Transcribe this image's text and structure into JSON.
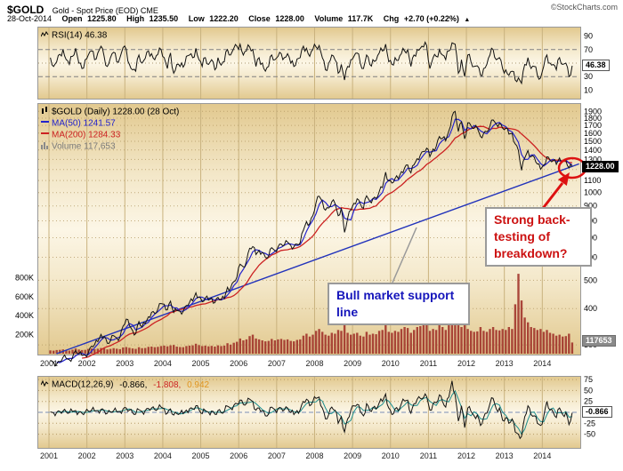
{
  "header": {
    "symbol": "$GOLD",
    "description": "Gold - Spot Price (EOD) CME",
    "watermark": "©StockCharts.com",
    "date": "28-Oct-2014",
    "quote": [
      {
        "label": "Open",
        "value": "1225.80"
      },
      {
        "label": "High",
        "value": "1235.50"
      },
      {
        "label": "Low",
        "value": "1222.20"
      },
      {
        "label": "Close",
        "value": "1228.00"
      },
      {
        "label": "Volume",
        "value": "117.7K"
      },
      {
        "label": "Chg",
        "value": "+2.70 (+0.22%)"
      }
    ],
    "chg_arrow": "▲"
  },
  "rsi_panel": {
    "label": "RSI(14) 46.38",
    "value_box": "46.38"
  },
  "main_panel": {
    "title": "$GOLD (Daily) 1228.00 (28 Oct)",
    "ma50_label": "MA(50) 1241.57",
    "ma200_label": "MA(200) 1284.33",
    "volume_label": "Volume 117,653",
    "price_box": "1228.00",
    "volume_box": "117653",
    "annotation_support": "Bull market support line",
    "annotation_backtest": "Strong back-testing of breakdown?"
  },
  "macd_panel": {
    "label": "MACD(12,26,9)",
    "macd_value": "-0.866,",
    "signal_value": "-1.808,",
    "hist_value": "0.942",
    "value_box": "-0.866"
  },
  "colors": {
    "ma50": "#2222cc",
    "ma200": "#cc2222",
    "price": "#111111",
    "trendline": "#2233bb",
    "annotation_red": "#cc1111",
    "annotation_blue": "#1515bb",
    "volume_bar": "#9e2b25",
    "panel_tan": "#e2c98f"
  },
  "chart_data": {
    "type": "line",
    "title": "$GOLD Gold - Spot Price (EOD) Daily 2001-2014 with RSI, MA(50), MA(200), Volume, MACD",
    "x_start_year": 2001,
    "x_step": "month",
    "x_axis_labels": [
      "2001",
      "2002",
      "2003",
      "2004",
      "2005",
      "2006",
      "2007",
      "2008",
      "2009",
      "2010",
      "2011",
      "2012",
      "2013",
      "2014"
    ],
    "ma50_window": 3,
    "ma200_window": 11,
    "price": {
      "scale": "log",
      "ylim": [
        280,
        2000
      ],
      "yticks": [
        1900,
        1800,
        1700,
        1600,
        1500,
        1400,
        1300,
        1200,
        1100,
        1000,
        900,
        800,
        700,
        600,
        500,
        400,
        300
      ],
      "values": [
        266,
        262,
        258,
        263,
        272,
        270,
        267,
        272,
        287,
        280,
        276,
        277,
        282,
        297,
        301,
        308,
        326,
        321,
        304,
        310,
        323,
        317,
        319,
        348,
        368,
        350,
        336,
        328,
        361,
        346,
        355,
        375,
        388,
        385,
        398,
        416,
        414,
        396,
        424,
        388,
        394,
        392,
        391,
        410,
        420,
        425,
        453,
        438,
        422,
        435,
        428,
        435,
        419,
        437,
        429,
        433,
        473,
        470,
        495,
        513,
        568,
        556,
        582,
        644,
        653,
        613,
        633,
        623,
        599,
        604,
        647,
        632,
        651,
        665,
        662,
        677,
        659,
        651,
        665,
        673,
        743,
        795,
        783,
        833,
        923,
        972,
        933,
        871,
        885,
        930,
        918,
        833,
        884,
        730,
        816,
        870,
        919,
        952,
        916,
        883,
        975,
        934,
        953,
        955,
        1008,
        1040,
        1175,
        1096,
        1078,
        1118,
        1116,
        1180,
        1215,
        1244,
        1169,
        1246,
        1307,
        1346,
        1383,
        1421,
        1327,
        1411,
        1439,
        1556,
        1536,
        1505,
        1628,
        1826,
        1900,
        1620,
        1746,
        1531,
        1737,
        1696,
        1662,
        1664,
        1558,
        1598,
        1615,
        1691,
        1776,
        1719,
        1726,
        1664,
        1661,
        1588,
        1598,
        1469,
        1394,
        1192,
        1313,
        1395,
        1327,
        1323,
        1253,
        1202,
        1244,
        1326,
        1291,
        1288,
        1250,
        1315,
        1285,
        1287,
        1216,
        1228
      ]
    },
    "rsi": {
      "ylim": [
        0,
        100
      ],
      "yticks": [
        90,
        70,
        50,
        30,
        10
      ],
      "values": [
        58,
        45,
        52,
        63,
        70,
        55,
        48,
        60,
        72,
        50,
        42,
        55,
        62,
        68,
        55,
        65,
        75,
        60,
        45,
        58,
        66,
        52,
        58,
        73,
        70,
        48,
        40,
        38,
        62,
        50,
        57,
        68,
        64,
        55,
        63,
        70,
        58,
        42,
        65,
        35,
        48,
        45,
        44,
        60,
        62,
        58,
        72,
        55,
        45,
        58,
        48,
        55,
        40,
        58,
        47,
        52,
        70,
        62,
        72,
        75,
        78,
        62,
        68,
        74,
        70,
        45,
        58,
        50,
        38,
        45,
        62,
        55,
        60,
        64,
        58,
        64,
        50,
        45,
        56,
        58,
        75,
        72,
        60,
        70,
        74,
        76,
        58,
        40,
        50,
        62,
        55,
        35,
        48,
        25,
        45,
        55,
        60,
        65,
        50,
        42,
        62,
        48,
        55,
        54,
        65,
        68,
        78,
        52,
        48,
        58,
        54,
        64,
        68,
        70,
        45,
        62,
        70,
        72,
        74,
        76,
        42,
        58,
        60,
        70,
        62,
        55,
        68,
        80,
        78,
        35,
        55,
        30,
        62,
        52,
        45,
        46,
        32,
        42,
        48,
        62,
        70,
        55,
        58,
        42,
        40,
        32,
        38,
        25,
        28,
        20,
        48,
        58,
        42,
        45,
        32,
        28,
        45,
        62,
        50,
        48,
        40,
        58,
        48,
        50,
        30,
        46
      ]
    },
    "macd": {
      "yticks": [
        75,
        50,
        25,
        0,
        -25,
        -50
      ],
      "values": [
        1,
        -1,
        0,
        2,
        3,
        1,
        -1,
        2,
        4,
        0,
        -2,
        1,
        3,
        5,
        3,
        4,
        7,
        4,
        -2,
        1,
        4,
        1,
        2,
        8,
        10,
        5,
        -1,
        -4,
        6,
        2,
        4,
        9,
        10,
        6,
        8,
        12,
        8,
        -2,
        8,
        -6,
        -3,
        -2,
        -3,
        5,
        8,
        8,
        15,
        6,
        -3,
        4,
        0,
        3,
        -4,
        4,
        -1,
        2,
        14,
        10,
        16,
        20,
        28,
        18,
        20,
        30,
        25,
        5,
        10,
        4,
        -8,
        -4,
        12,
        6,
        8,
        10,
        6,
        10,
        0,
        -5,
        4,
        6,
        25,
        30,
        15,
        25,
        32,
        35,
        10,
        -15,
        -5,
        12,
        5,
        -25,
        -10,
        -45,
        -15,
        5,
        15,
        18,
        2,
        -8,
        20,
        4,
        10,
        8,
        22,
        25,
        42,
        10,
        -5,
        8,
        4,
        20,
        26,
        28,
        -2,
        20,
        30,
        32,
        34,
        36,
        5,
        20,
        22,
        40,
        25,
        12,
        35,
        72,
        40,
        -20,
        15,
        -35,
        10,
        2,
        -8,
        -6,
        -30,
        -12,
        -2,
        20,
        32,
        8,
        10,
        -18,
        -12,
        -25,
        -15,
        -45,
        -50,
        -55,
        -10,
        15,
        -5,
        -8,
        -25,
        -30,
        -10,
        25,
        5,
        0,
        -12,
        10,
        -5,
        0,
        -28,
        -1
      ]
    },
    "volume_k": {
      "yticks_left": [
        "800K",
        "600K",
        "400K",
        "200K"
      ],
      "values": [
        35,
        32,
        38,
        40,
        45,
        36,
        33,
        42,
        55,
        44,
        38,
        40,
        50,
        55,
        48,
        52,
        60,
        58,
        45,
        50,
        58,
        52,
        48,
        65,
        70,
        62,
        55,
        50,
        68,
        58,
        60,
        72,
        75,
        68,
        72,
        80,
        85,
        78,
        88,
        92,
        75,
        70,
        68,
        80,
        85,
        88,
        105,
        90,
        80,
        85,
        78,
        82,
        75,
        88,
        80,
        85,
        110,
        95,
        115,
        125,
        160,
        140,
        150,
        185,
        200,
        160,
        150,
        140,
        130,
        135,
        155,
        140,
        150,
        155,
        145,
        150,
        135,
        130,
        145,
        150,
        190,
        210,
        180,
        200,
        240,
        260,
        230,
        200,
        190,
        220,
        210,
        250,
        240,
        310,
        220,
        200,
        210,
        220,
        190,
        180,
        230,
        200,
        210,
        205,
        240,
        250,
        300,
        230,
        220,
        240,
        230,
        260,
        280,
        270,
        220,
        250,
        280,
        290,
        300,
        310,
        240,
        260,
        250,
        300,
        280,
        250,
        320,
        380,
        360,
        300,
        280,
        320,
        260,
        240,
        230,
        235,
        280,
        240,
        230,
        260,
        280,
        250,
        245,
        260,
        250,
        280,
        260,
        520,
        840,
        560,
        380,
        330,
        280,
        270,
        250,
        260,
        230,
        250,
        220,
        210,
        190,
        200,
        180,
        185,
        210,
        118
      ]
    },
    "trendline": {
      "x1": 2001.2,
      "p1": 280,
      "x2": 2014.97,
      "p2": 1255
    }
  }
}
